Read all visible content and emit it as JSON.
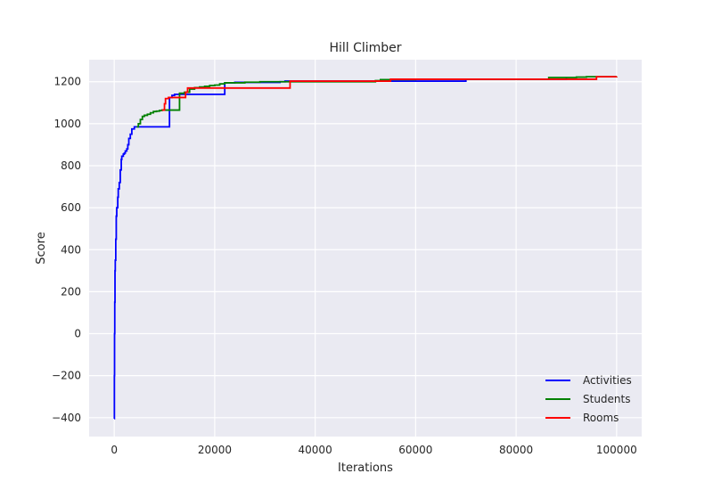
{
  "chart_data": {
    "type": "line",
    "title": "Hill Climber",
    "xlabel": "Iterations",
    "ylabel": "Score",
    "xlim": [
      -5000,
      105000
    ],
    "ylim": [
      -490,
      1305
    ],
    "xticks": [
      0,
      20000,
      40000,
      60000,
      80000,
      100000
    ],
    "yticks": [
      -400,
      -200,
      0,
      200,
      400,
      600,
      800,
      1000,
      1200
    ],
    "xtick_labels": [
      "0",
      "20000",
      "40000",
      "60000",
      "80000",
      "100000"
    ],
    "ytick_labels": [
      "−400",
      "−200",
      "0",
      "200",
      "400",
      "600",
      "800",
      "1000",
      "1200"
    ],
    "grid": true,
    "legend_position": "lower-right",
    "series": [
      {
        "name": "Activities",
        "color": "#0000ff",
        "points": [
          [
            0,
            -405
          ],
          [
            30,
            -200
          ],
          [
            60,
            0
          ],
          [
            100,
            150
          ],
          [
            150,
            300
          ],
          [
            200,
            350
          ],
          [
            300,
            450
          ],
          [
            400,
            560
          ],
          [
            500,
            600
          ],
          [
            700,
            650
          ],
          [
            800,
            690
          ],
          [
            1000,
            720
          ],
          [
            1200,
            780
          ],
          [
            1400,
            830
          ],
          [
            1500,
            845
          ],
          [
            1800,
            855
          ],
          [
            2000,
            860
          ],
          [
            2200,
            870
          ],
          [
            2500,
            880
          ],
          [
            2700,
            900
          ],
          [
            2900,
            930
          ],
          [
            3200,
            950
          ],
          [
            3500,
            975
          ],
          [
            4000,
            985
          ],
          [
            4500,
            985
          ],
          [
            11000,
            1125
          ],
          [
            11500,
            1135
          ],
          [
            12000,
            1140
          ],
          [
            22000,
            1195
          ],
          [
            24000,
            1197
          ],
          [
            33000,
            1200
          ],
          [
            34000,
            1203
          ],
          [
            51500,
            1203
          ],
          [
            70000,
            1212
          ],
          [
            75000,
            1212
          ],
          [
            86000,
            1212
          ],
          [
            90000,
            1222
          ]
        ]
      },
      {
        "name": "Students",
        "color": "#008000",
        "points": [
          [
            4500,
            985
          ],
          [
            4800,
            1000
          ],
          [
            5200,
            1020
          ],
          [
            5600,
            1035
          ],
          [
            6000,
            1040
          ],
          [
            6600,
            1045
          ],
          [
            7200,
            1052
          ],
          [
            7800,
            1058
          ],
          [
            8400,
            1060
          ],
          [
            9000,
            1063
          ],
          [
            9500,
            1065
          ],
          [
            13000,
            1145
          ],
          [
            14000,
            1150
          ],
          [
            15000,
            1165
          ],
          [
            16000,
            1172
          ],
          [
            17000,
            1175
          ],
          [
            18000,
            1178
          ],
          [
            19000,
            1182
          ],
          [
            20000,
            1184
          ],
          [
            21000,
            1190
          ],
          [
            22000,
            1195
          ],
          [
            26000,
            1198
          ],
          [
            29000,
            1200
          ],
          [
            52000,
            1205
          ],
          [
            53000,
            1210
          ],
          [
            60000,
            1212
          ],
          [
            86500,
            1220
          ],
          [
            92000,
            1222
          ],
          [
            94000,
            1224
          ],
          [
            100000,
            1225
          ]
        ]
      },
      {
        "name": "Rooms",
        "color": "#ff0000",
        "points": [
          [
            9500,
            1065
          ],
          [
            9800,
            1065
          ],
          [
            10000,
            1095
          ],
          [
            10200,
            1120
          ],
          [
            10800,
            1125
          ],
          [
            14200,
            1150
          ],
          [
            14600,
            1170
          ],
          [
            35000,
            1203
          ],
          [
            40000,
            1203
          ],
          [
            50000,
            1203
          ],
          [
            55000,
            1212
          ],
          [
            65000,
            1212
          ],
          [
            78000,
            1212
          ],
          [
            96000,
            1224
          ],
          [
            100000,
            1225
          ]
        ]
      }
    ]
  }
}
